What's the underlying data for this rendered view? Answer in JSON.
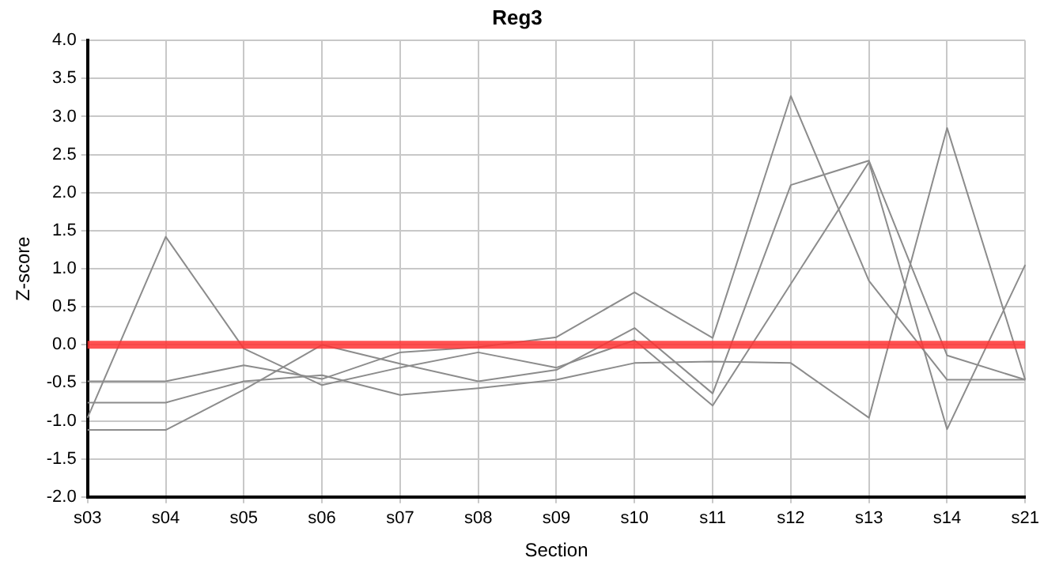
{
  "chart_data": {
    "type": "line",
    "title": "Reg3",
    "xlabel": "Section",
    "ylabel": "Z-score",
    "categories": [
      "s03",
      "s04",
      "s05",
      "s06",
      "s07",
      "s08",
      "s09",
      "s10",
      "s11",
      "s12",
      "s13",
      "s14",
      "s21"
    ],
    "series": [
      {
        "color": "#8c8c8c",
        "values": [
          -0.96,
          1.42,
          -0.05,
          -0.53,
          -0.3,
          -0.1,
          -0.3,
          0.06,
          -0.8,
          0.8,
          2.4,
          -1.11,
          1.05
        ]
      },
      {
        "color": "#8c8c8c",
        "values": [
          -1.12,
          -1.12,
          -0.59,
          0.0,
          -0.25,
          -0.48,
          -0.33,
          0.22,
          -0.64,
          2.1,
          2.42,
          -0.14,
          -0.46
        ]
      },
      {
        "color": "#8c8c8c",
        "values": [
          -0.48,
          -0.48,
          -0.27,
          -0.45,
          -0.1,
          -0.03,
          0.1,
          0.69,
          0.09,
          3.27,
          0.84,
          -0.46,
          -0.46
        ]
      },
      {
        "color": "#8c8c8c",
        "values": [
          -0.76,
          -0.76,
          -0.48,
          -0.4,
          -0.66,
          -0.57,
          -0.46,
          -0.24,
          -0.22,
          -0.24,
          -0.96,
          2.85,
          -0.46
        ]
      }
    ],
    "ylim": [
      -2,
      4
    ],
    "yticks": [
      {
        "value": -2,
        "label": "-2.0"
      },
      {
        "value": -1.5,
        "label": "-1.5"
      },
      {
        "value": -1,
        "label": "-1.0"
      },
      {
        "value": -0.5,
        "label": "-0.5"
      },
      {
        "value": 0,
        "label": "0.0"
      },
      {
        "value": 0.5,
        "label": "0.5"
      },
      {
        "value": 1,
        "label": "1.0"
      },
      {
        "value": 1.5,
        "label": "1.5"
      },
      {
        "value": 2,
        "label": "2.0"
      },
      {
        "value": 2.5,
        "label": "2.5"
      },
      {
        "value": 3,
        "label": "3.0"
      },
      {
        "value": 3.5,
        "label": "3.5"
      },
      {
        "value": 4,
        "label": "4.0"
      }
    ],
    "ref_lines": [
      {
        "axis": "y",
        "value": 0,
        "color": "#ff3333"
      }
    ],
    "grid": true,
    "legend": false,
    "marker": "none",
    "line_style": "solid"
  }
}
